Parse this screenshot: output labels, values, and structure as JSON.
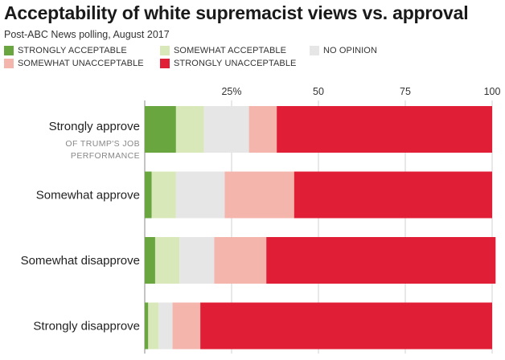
{
  "title": "Acceptability of white supremacist views vs. approval",
  "subtitle": "Post-ABC News polling, August 2017",
  "chart_data": {
    "type": "bar",
    "stacked": true,
    "orientation": "horizontal",
    "categories": [
      "Strongly approve",
      "Somewhat approve",
      "Somewhat disapprove",
      "Strongly disapprove"
    ],
    "category_note": [
      "OF TRUMP'S JOB",
      "PERFORMANCE"
    ],
    "series": [
      {
        "name": "STRONGLY ACCEPTABLE",
        "color": "#6aa63f",
        "values": [
          9,
          2,
          3,
          1
        ]
      },
      {
        "name": "SOMEWHAT ACCEPTABLE",
        "color": "#d9e8b9",
        "values": [
          8,
          7,
          7,
          3
        ]
      },
      {
        "name": "NO OPINION",
        "color": "#e6e6e6",
        "values": [
          13,
          14,
          10,
          4
        ]
      },
      {
        "name": "SOMEWHAT UNACCEPTABLE",
        "color": "#f4b5ad",
        "values": [
          8,
          20,
          15,
          8
        ]
      },
      {
        "name": "STRONGLY UNACCEPTABLE",
        "color": "#e01f36",
        "values": [
          62,
          57,
          66,
          84
        ]
      }
    ],
    "x_ticks": [
      "25%",
      "50",
      "75",
      "100"
    ],
    "x_tick_values": [
      25,
      50,
      75,
      100
    ],
    "xlim": [
      0,
      100
    ],
    "grid": true,
    "legend": "top-left"
  }
}
